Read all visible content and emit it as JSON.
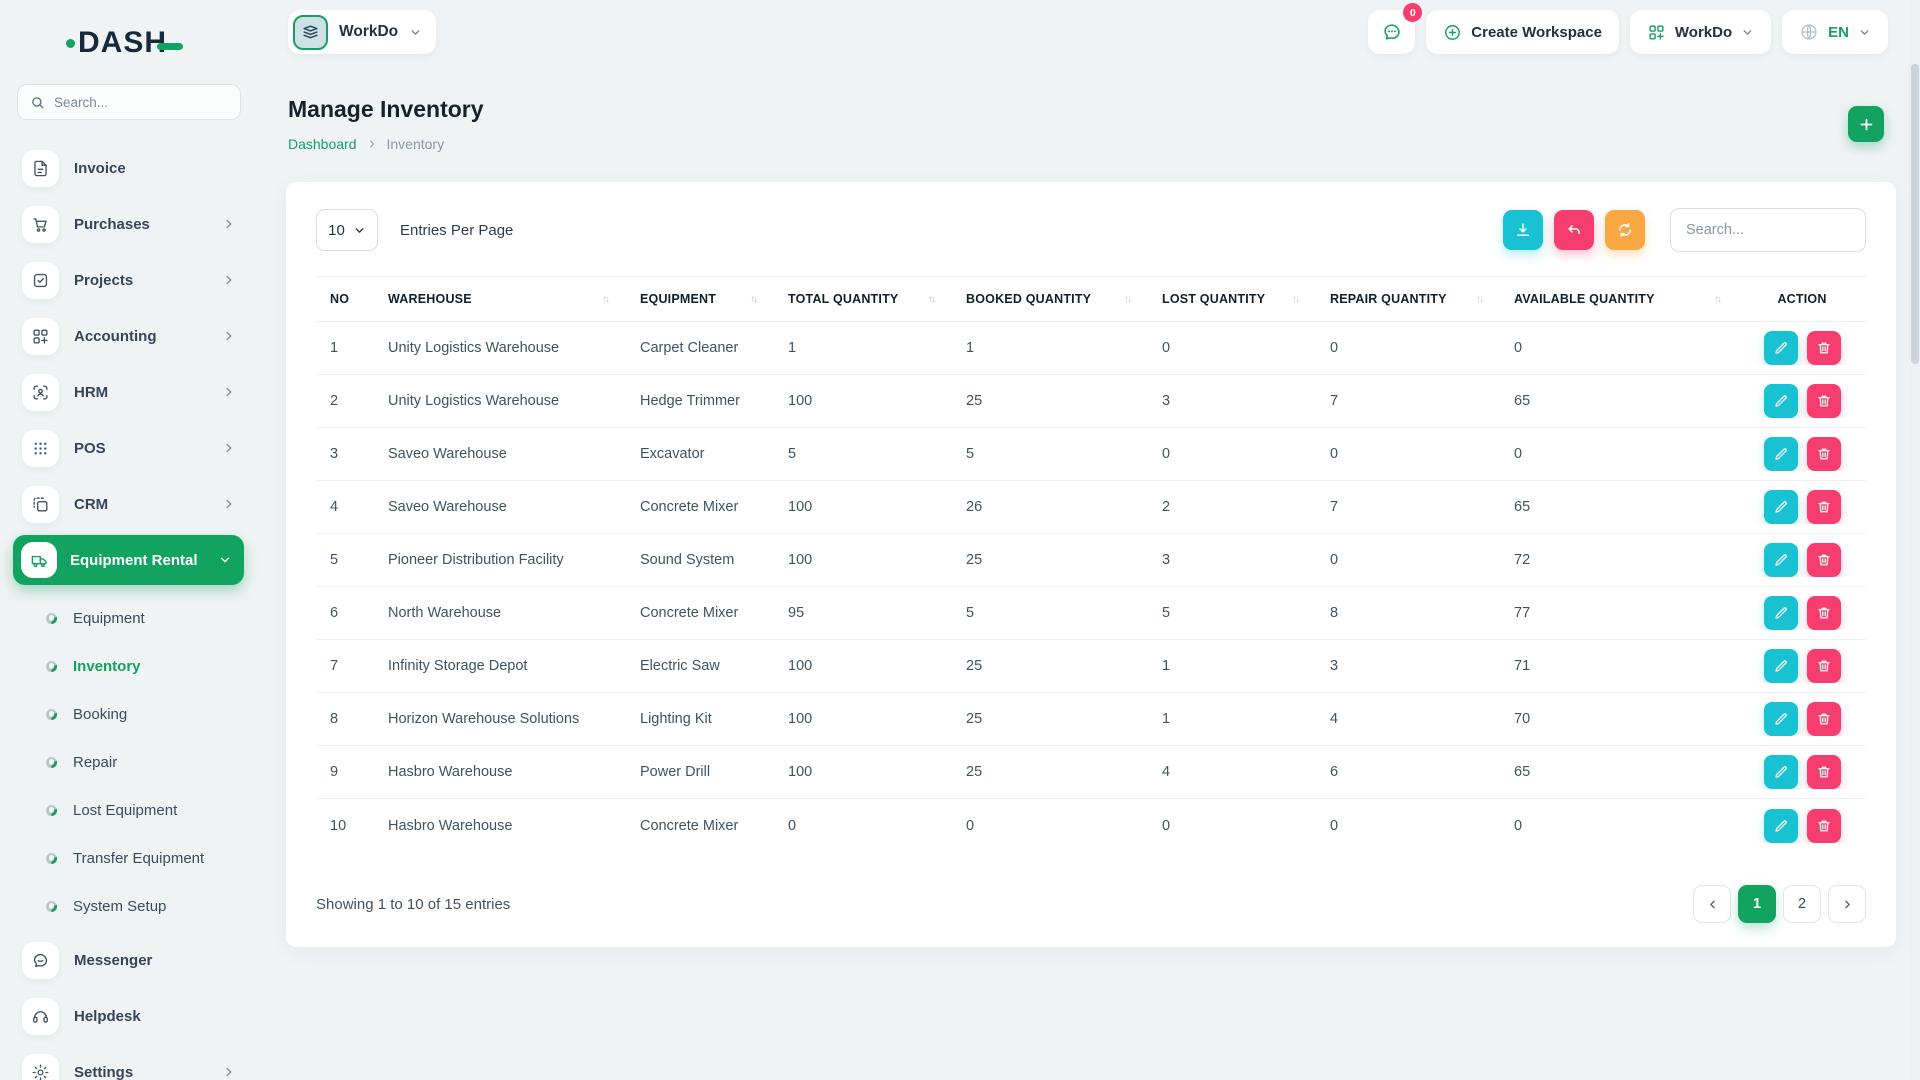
{
  "brand": {
    "name": "DASH"
  },
  "sidebar": {
    "search_placeholder": "Search...",
    "items": [
      {
        "label": "Invoice"
      },
      {
        "label": "Purchases"
      },
      {
        "label": "Projects"
      },
      {
        "label": "Accounting"
      },
      {
        "label": "HRM"
      },
      {
        "label": "POS"
      },
      {
        "label": "CRM"
      },
      {
        "label": "Equipment Rental"
      }
    ],
    "submenu": [
      {
        "label": "Equipment"
      },
      {
        "label": "Inventory"
      },
      {
        "label": "Booking"
      },
      {
        "label": "Repair"
      },
      {
        "label": "Lost Equipment"
      },
      {
        "label": "Transfer Equipment"
      },
      {
        "label": "System Setup"
      }
    ],
    "footer_items": [
      {
        "label": "Messenger"
      },
      {
        "label": "Helpdesk"
      },
      {
        "label": "Settings"
      }
    ]
  },
  "header": {
    "workspace_switcher": "WorkDo",
    "messenger_badge": "0",
    "create_workspace": "Create Workspace",
    "workspace_menu": "WorkDo",
    "language": "EN"
  },
  "page": {
    "title": "Manage Inventory",
    "breadcrumb_home": "Dashboard",
    "breadcrumb_current": "Inventory"
  },
  "toolbar": {
    "entries_per_page_value": "10",
    "entries_per_page_label": "Entries Per Page",
    "search_placeholder": "Search..."
  },
  "table": {
    "columns": [
      "NO",
      "WAREHOUSE",
      "EQUIPMENT",
      "TOTAL QUANTITY",
      "BOOKED QUANTITY",
      "LOST QUANTITY",
      "REPAIR QUANTITY",
      "AVAILABLE QUANTITY",
      "ACTION"
    ],
    "rows": [
      {
        "no": "1",
        "warehouse": "Unity Logistics Warehouse",
        "equipment": "Carpet Cleaner",
        "total": "1",
        "booked": "1",
        "lost": "0",
        "repair": "0",
        "available": "0"
      },
      {
        "no": "2",
        "warehouse": "Unity Logistics Warehouse",
        "equipment": "Hedge Trimmer",
        "total": "100",
        "booked": "25",
        "lost": "3",
        "repair": "7",
        "available": "65"
      },
      {
        "no": "3",
        "warehouse": "Saveo Warehouse",
        "equipment": "Excavator",
        "total": "5",
        "booked": "5",
        "lost": "0",
        "repair": "0",
        "available": "0"
      },
      {
        "no": "4",
        "warehouse": "Saveo Warehouse",
        "equipment": "Concrete Mixer",
        "total": "100",
        "booked": "26",
        "lost": "2",
        "repair": "7",
        "available": "65"
      },
      {
        "no": "5",
        "warehouse": "Pioneer Distribution Facility",
        "equipment": "Sound System",
        "total": "100",
        "booked": "25",
        "lost": "3",
        "repair": "0",
        "available": "72"
      },
      {
        "no": "6",
        "warehouse": "North Warehouse",
        "equipment": "Concrete Mixer",
        "total": "95",
        "booked": "5",
        "lost": "5",
        "repair": "8",
        "available": "77"
      },
      {
        "no": "7",
        "warehouse": "Infinity Storage Depot",
        "equipment": "Electric Saw",
        "total": "100",
        "booked": "25",
        "lost": "1",
        "repair": "3",
        "available": "71"
      },
      {
        "no": "8",
        "warehouse": "Horizon Warehouse Solutions",
        "equipment": "Lighting Kit",
        "total": "100",
        "booked": "25",
        "lost": "1",
        "repair": "4",
        "available": "70"
      },
      {
        "no": "9",
        "warehouse": "Hasbro Warehouse",
        "equipment": "Power Drill",
        "total": "100",
        "booked": "25",
        "lost": "4",
        "repair": "6",
        "available": "65"
      },
      {
        "no": "10",
        "warehouse": "Hasbro Warehouse",
        "equipment": "Concrete Mixer",
        "total": "0",
        "booked": "0",
        "lost": "0",
        "repair": "0",
        "available": "0"
      }
    ]
  },
  "footer": {
    "showing": "Showing 1 to 10 of 15 entries",
    "pages": [
      "1",
      "2"
    ],
    "active_page": "1"
  },
  "colors": {
    "accent_green": "#12a360",
    "cyan": "#18c2d2",
    "pink": "#f53d6f",
    "orange": "#f9a743"
  }
}
